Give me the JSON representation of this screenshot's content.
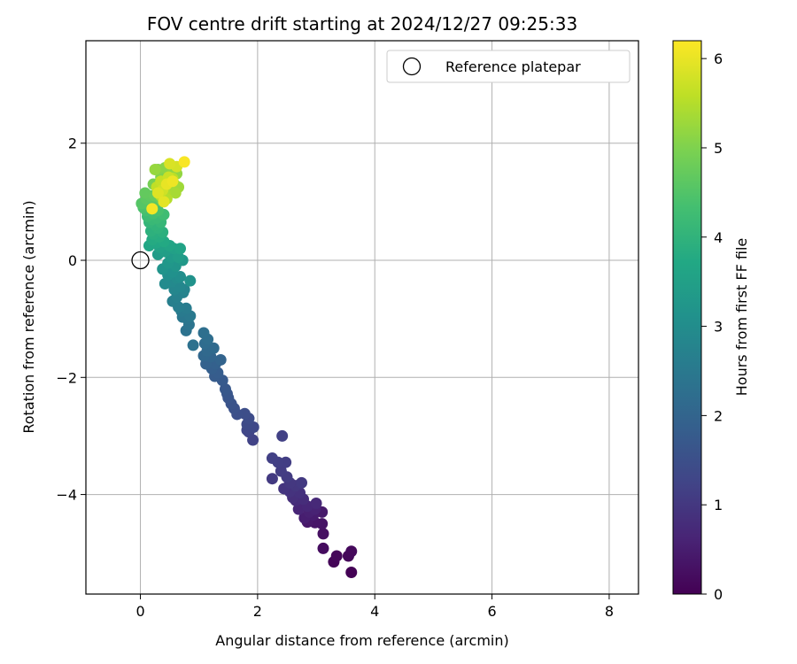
{
  "chart_data": {
    "type": "scatter",
    "title": "FOV centre drift starting at 2024/12/27 09:25:33",
    "xlabel": "Angular distance from reference (arcmin)",
    "ylabel": "Rotation from reference (arcmin)",
    "xlim": [
      -0.93,
      8.5
    ],
    "ylim": [
      -5.7,
      3.75
    ],
    "xticks": [
      0,
      2,
      4,
      6,
      8
    ],
    "xtick_labels": [
      "0",
      "2",
      "4",
      "6",
      "8"
    ],
    "yticks": [
      2,
      0,
      -2,
      -4
    ],
    "ytick_labels": [
      "2",
      "0",
      "−2",
      "−4"
    ],
    "grid": true,
    "legend": {
      "placement": "top-right",
      "entries": [
        "Reference platepar"
      ]
    },
    "reference_point": {
      "label": "Reference platepar",
      "x": 0,
      "y": 0
    },
    "colorbar": {
      "label": "Hours from first FF file",
      "colormap": "viridis",
      "range": [
        0,
        6.2
      ],
      "ticks": [
        0,
        1,
        2,
        3,
        4,
        5,
        6
      ],
      "tick_labels": [
        "0",
        "1",
        "2",
        "3",
        "4",
        "5",
        "6"
      ]
    },
    "points": [
      [
        3.6,
        -5.33,
        0.02
      ],
      [
        3.3,
        -5.15,
        0.06
      ],
      [
        3.35,
        -5.05,
        0.1
      ],
      [
        3.55,
        -5.05,
        0.12
      ],
      [
        3.6,
        -4.97,
        0.14
      ],
      [
        3.12,
        -4.92,
        0.2
      ],
      [
        3.12,
        -4.67,
        0.26
      ],
      [
        3.1,
        -4.5,
        0.32
      ],
      [
        2.98,
        -4.48,
        0.36
      ],
      [
        2.85,
        -4.47,
        0.4
      ],
      [
        3.1,
        -4.3,
        0.44
      ],
      [
        2.95,
        -4.35,
        0.48
      ],
      [
        2.8,
        -4.4,
        0.52
      ],
      [
        2.88,
        -4.3,
        0.56
      ],
      [
        2.98,
        -4.25,
        0.6
      ],
      [
        2.7,
        -4.25,
        0.64
      ],
      [
        2.85,
        -4.2,
        0.68
      ],
      [
        3.0,
        -4.15,
        0.72
      ],
      [
        2.65,
        -4.1,
        0.76
      ],
      [
        2.78,
        -4.08,
        0.8
      ],
      [
        2.6,
        -4.05,
        0.84
      ],
      [
        2.72,
        -3.97,
        0.88
      ],
      [
        2.55,
        -3.95,
        0.92
      ],
      [
        2.45,
        -3.9,
        0.95
      ],
      [
        2.65,
        -3.85,
        0.98
      ],
      [
        2.55,
        -3.8,
        1.0
      ],
      [
        2.75,
        -3.8,
        1.02
      ],
      [
        2.25,
        -3.73,
        1.05
      ],
      [
        2.5,
        -3.7,
        1.08
      ],
      [
        2.4,
        -3.6,
        1.1
      ],
      [
        2.48,
        -3.45,
        1.12
      ],
      [
        2.35,
        -3.45,
        1.14
      ],
      [
        2.25,
        -3.38,
        1.16
      ],
      [
        2.42,
        -3.0,
        1.18
      ],
      [
        1.92,
        -3.07,
        1.22
      ],
      [
        1.85,
        -2.93,
        1.26
      ],
      [
        1.82,
        -2.9,
        1.3
      ],
      [
        1.93,
        -2.85,
        1.34
      ],
      [
        1.82,
        -2.8,
        1.38
      ],
      [
        1.85,
        -2.7,
        1.42
      ],
      [
        1.78,
        -2.62,
        1.46
      ],
      [
        1.65,
        -2.63,
        1.5
      ],
      [
        1.6,
        -2.53,
        1.54
      ],
      [
        1.55,
        -2.45,
        1.58
      ],
      [
        1.5,
        -2.35,
        1.62
      ],
      [
        1.48,
        -2.28,
        1.66
      ],
      [
        1.45,
        -2.2,
        1.7
      ],
      [
        1.4,
        -2.05,
        1.74
      ],
      [
        1.27,
        -1.98,
        1.78
      ],
      [
        1.32,
        -1.92,
        1.82
      ],
      [
        1.22,
        -1.85,
        1.86
      ],
      [
        1.28,
        -1.77,
        1.9
      ],
      [
        1.12,
        -1.77,
        1.94
      ],
      [
        1.37,
        -1.7,
        1.98
      ],
      [
        1.2,
        -1.65,
        2.02
      ],
      [
        1.08,
        -1.63,
        2.06
      ],
      [
        1.14,
        -1.55,
        2.1
      ],
      [
        1.25,
        -1.5,
        2.14
      ],
      [
        1.1,
        -1.42,
        2.18
      ],
      [
        1.15,
        -1.35,
        2.22
      ],
      [
        1.08,
        -1.24,
        2.26
      ],
      [
        0.9,
        -1.45,
        2.3
      ],
      [
        0.78,
        -1.2,
        2.34
      ],
      [
        0.83,
        -1.1,
        2.38
      ],
      [
        0.8,
        -1.0,
        2.42
      ],
      [
        0.72,
        -0.97,
        2.46
      ],
      [
        0.85,
        -0.95,
        2.5
      ],
      [
        0.7,
        -0.87,
        2.54
      ],
      [
        0.78,
        -0.82,
        2.58
      ],
      [
        0.65,
        -0.8,
        2.62
      ],
      [
        0.55,
        -0.7,
        2.66
      ],
      [
        0.62,
        -0.63,
        2.7
      ],
      [
        0.73,
        -0.55,
        2.74
      ],
      [
        0.75,
        -0.5,
        2.78
      ],
      [
        0.58,
        -0.5,
        2.82
      ],
      [
        0.67,
        -0.45,
        2.86
      ],
      [
        0.53,
        -0.37,
        2.9
      ],
      [
        0.42,
        -0.4,
        2.94
      ],
      [
        0.62,
        -0.3,
        2.98
      ],
      [
        0.68,
        -0.28,
        3.02
      ],
      [
        0.47,
        -0.25,
        3.06
      ],
      [
        0.55,
        -0.2,
        3.1
      ],
      [
        0.85,
        -0.35,
        3.14
      ],
      [
        0.38,
        -0.15,
        3.18
      ],
      [
        0.6,
        -0.1,
        3.22
      ],
      [
        0.47,
        -0.05,
        3.26
      ],
      [
        0.72,
        0.0,
        3.3
      ],
      [
        0.52,
        0.05,
        3.34
      ],
      [
        0.3,
        0.1,
        3.38
      ],
      [
        0.65,
        0.05,
        3.42
      ],
      [
        0.42,
        0.15,
        3.46
      ],
      [
        0.57,
        0.2,
        3.5
      ],
      [
        0.33,
        0.22,
        3.54
      ],
      [
        0.68,
        0.2,
        3.58
      ],
      [
        0.5,
        0.25,
        3.62
      ],
      [
        0.15,
        0.25,
        3.66
      ],
      [
        0.27,
        0.3,
        3.7
      ],
      [
        0.4,
        0.32,
        3.74
      ],
      [
        0.2,
        0.35,
        3.78
      ],
      [
        0.32,
        0.4,
        3.82
      ],
      [
        0.22,
        0.45,
        3.86
      ],
      [
        0.38,
        0.48,
        3.9
      ],
      [
        0.18,
        0.5,
        3.94
      ],
      [
        0.3,
        0.55,
        3.98
      ],
      [
        0.25,
        0.6,
        4.02
      ],
      [
        0.15,
        0.65,
        4.06
      ],
      [
        0.35,
        0.65,
        4.1
      ],
      [
        0.2,
        0.7,
        4.14
      ],
      [
        0.28,
        0.72,
        4.18
      ],
      [
        0.12,
        0.75,
        4.22
      ],
      [
        0.4,
        0.78,
        4.26
      ],
      [
        0.22,
        0.8,
        4.3
      ],
      [
        0.1,
        0.85,
        4.34
      ],
      [
        0.3,
        0.85,
        4.38
      ],
      [
        0.05,
        0.9,
        4.42
      ],
      [
        0.2,
        0.93,
        4.46
      ],
      [
        0.12,
        0.97,
        4.5
      ],
      [
        0.02,
        0.97,
        4.54
      ],
      [
        0.25,
        1.0,
        4.58
      ],
      [
        0.1,
        1.05,
        4.62
      ],
      [
        0.17,
        1.1,
        4.66
      ],
      [
        0.08,
        1.15,
        4.7
      ],
      [
        0.25,
        1.1,
        4.74
      ],
      [
        0.35,
        1.05,
        4.78
      ],
      [
        0.3,
        1.2,
        4.82
      ],
      [
        0.4,
        1.25,
        4.86
      ],
      [
        0.22,
        1.3,
        4.9
      ],
      [
        0.45,
        1.35,
        4.94
      ],
      [
        0.35,
        1.42,
        4.98
      ],
      [
        0.5,
        1.5,
        5.02
      ],
      [
        0.3,
        1.55,
        5.06
      ],
      [
        0.42,
        1.58,
        5.1
      ],
      [
        0.55,
        1.55,
        5.14
      ],
      [
        0.62,
        1.48,
        5.18
      ],
      [
        0.25,
        1.55,
        5.22
      ],
      [
        0.58,
        1.3,
        5.26
      ],
      [
        0.65,
        1.25,
        5.3
      ],
      [
        0.5,
        1.2,
        5.34
      ],
      [
        0.6,
        1.15,
        5.38
      ],
      [
        0.42,
        1.15,
        5.42
      ],
      [
        0.35,
        1.1,
        5.46
      ],
      [
        0.45,
        1.05,
        5.5
      ],
      [
        0.55,
        1.4,
        5.55
      ],
      [
        0.28,
        1.25,
        5.6
      ],
      [
        0.35,
        1.35,
        5.65
      ],
      [
        0.48,
        1.42,
        5.7
      ],
      [
        0.38,
        1.2,
        5.75
      ],
      [
        0.62,
        1.6,
        5.8
      ],
      [
        0.5,
        1.65,
        5.85
      ],
      [
        0.3,
        1.15,
        5.9
      ],
      [
        0.4,
        1.0,
        5.95
      ],
      [
        0.45,
        1.3,
        6.0
      ],
      [
        0.55,
        1.35,
        6.05
      ],
      [
        0.2,
        0.88,
        6.1
      ],
      [
        0.75,
        1.68,
        6.15
      ]
    ]
  }
}
